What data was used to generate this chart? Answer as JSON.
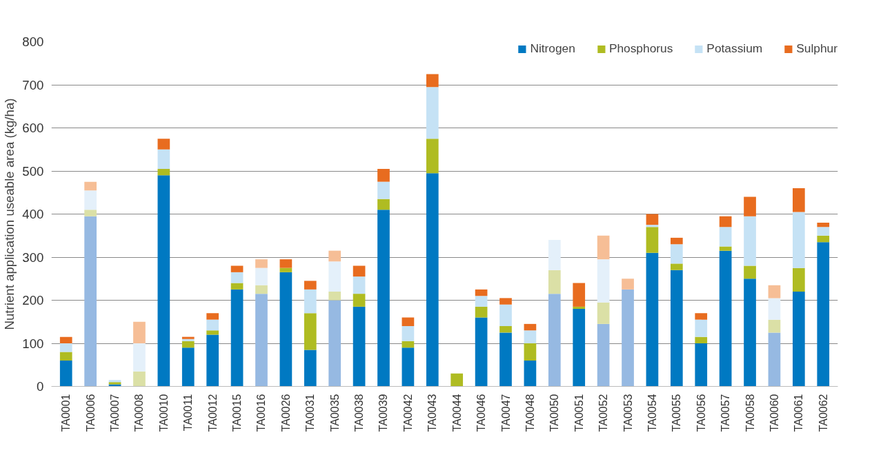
{
  "chart_data": {
    "type": "bar",
    "stacked": true,
    "ylabel": "Nutrient application useable area (kg/ha)",
    "categories": [
      "TA0001",
      "TA0006",
      "TA0007",
      "TA0008",
      "TA0010",
      "TA0011",
      "TA0012",
      "TA0015",
      "TA0016",
      "TA0026",
      "TA0031",
      "TA0035",
      "TA0038",
      "TA0039",
      "TA0042",
      "TA0043",
      "TA0044",
      "TA0046",
      "TA0047",
      "TA0048",
      "TA0050",
      "TA0051",
      "TA0052",
      "TA0053",
      "TA0054",
      "TA0055",
      "TA0056",
      "TA0057",
      "TA0058",
      "TA0060",
      "TA0061",
      "TA0062"
    ],
    "series": [
      {
        "name": "Nitrogen",
        "color": "#0079c2",
        "colors": [
          "#0079c2",
          "#96b9e2",
          "#0079c2",
          "#96b9e2",
          "#0079c2",
          "#0079c2",
          "#0079c2",
          "#0079c2",
          "#96b9e2",
          "#0079c2",
          "#0079c2",
          "#96b9e2",
          "#0079c2",
          "#0079c2",
          "#0079c2",
          "#0079c2",
          "#0079c2",
          "#0079c2",
          "#0079c2",
          "#0079c2",
          "#96b9e2",
          "#0079c2",
          "#96b9e2",
          "#96b9e2",
          "#0079c2",
          "#0079c2",
          "#0079c2",
          "#0079c2",
          "#0079c2",
          "#96b9e2",
          "#0079c2",
          "#0079c2"
        ],
        "values": [
          60,
          395,
          5,
          0,
          490,
          90,
          120,
          225,
          215,
          265,
          85,
          200,
          185,
          410,
          90,
          495,
          0,
          160,
          125,
          60,
          215,
          180,
          145,
          225,
          310,
          270,
          100,
          315,
          250,
          125,
          220,
          335
        ]
      },
      {
        "name": "Phosphorus",
        "color": "#afbc22",
        "colors": [
          "#afbc22",
          "#dbe0a6",
          "#afbc22",
          "#dbe0a6",
          "#afbc22",
          "#afbc22",
          "#afbc22",
          "#afbc22",
          "#dbe0a6",
          "#afbc22",
          "#afbc22",
          "#dbe0a6",
          "#afbc22",
          "#afbc22",
          "#afbc22",
          "#afbc22",
          "#afbc22",
          "#afbc22",
          "#afbc22",
          "#afbc22",
          "#dbe0a6",
          "#afbc22",
          "#dbe0a6",
          "#dbe0a6",
          "#afbc22",
          "#afbc22",
          "#afbc22",
          "#afbc22",
          "#afbc22",
          "#dbe0a6",
          "#afbc22",
          "#afbc22"
        ],
        "values": [
          20,
          15,
          5,
          35,
          15,
          15,
          10,
          15,
          20,
          10,
          85,
          20,
          30,
          25,
          15,
          80,
          30,
          25,
          15,
          40,
          55,
          5,
          50,
          0,
          60,
          15,
          15,
          10,
          30,
          30,
          55,
          15
        ]
      },
      {
        "name": "Potassium",
        "color": "#c5e2f5",
        "colors": [
          "#c5e2f5",
          "#e4f0fa",
          "#c5e2f5",
          "#e4f0fa",
          "#c5e2f5",
          "#c5e2f5",
          "#c5e2f5",
          "#c5e2f5",
          "#e4f0fa",
          "#c5e2f5",
          "#c5e2f5",
          "#e4f0fa",
          "#c5e2f5",
          "#c5e2f5",
          "#c5e2f5",
          "#c5e2f5",
          "#c5e2f5",
          "#c5e2f5",
          "#c5e2f5",
          "#c5e2f5",
          "#e4f0fa",
          "#c5e2f5",
          "#e4f0fa",
          "#e4f0fa",
          "#c5e2f5",
          "#c5e2f5",
          "#c5e2f5",
          "#c5e2f5",
          "#c5e2f5",
          "#e4f0fa",
          "#c5e2f5",
          "#c5e2f5"
        ],
        "values": [
          20,
          45,
          5,
          65,
          45,
          5,
          25,
          25,
          40,
          0,
          55,
          70,
          40,
          40,
          35,
          120,
          0,
          25,
          50,
          30,
          70,
          0,
          100,
          0,
          5,
          45,
          40,
          45,
          115,
          50,
          130,
          20
        ]
      },
      {
        "name": "Sulphur",
        "color": "#e86c1f",
        "colors": [
          "#e86c1f",
          "#f6be96",
          "#e86c1f",
          "#f6be96",
          "#e86c1f",
          "#e86c1f",
          "#e86c1f",
          "#e86c1f",
          "#f6be96",
          "#e86c1f",
          "#e86c1f",
          "#f6be96",
          "#e86c1f",
          "#e86c1f",
          "#e86c1f",
          "#e86c1f",
          "#e86c1f",
          "#e86c1f",
          "#e86c1f",
          "#e86c1f",
          "#f6be96",
          "#e86c1f",
          "#f6be96",
          "#f6be96",
          "#e86c1f",
          "#e86c1f",
          "#e86c1f",
          "#e86c1f",
          "#e86c1f",
          "#f6be96",
          "#e86c1f",
          "#e86c1f"
        ],
        "values": [
          15,
          20,
          0,
          50,
          25,
          5,
          15,
          15,
          20,
          20,
          20,
          25,
          25,
          30,
          20,
          30,
          0,
          15,
          15,
          15,
          0,
          55,
          55,
          25,
          25,
          15,
          15,
          25,
          45,
          30,
          55,
          10
        ]
      }
    ],
    "ylim": [
      0,
      800
    ],
    "yticks": [
      0,
      100,
      200,
      300,
      400,
      500,
      600,
      700,
      800
    ],
    "grid": "y",
    "legend": "top right"
  }
}
